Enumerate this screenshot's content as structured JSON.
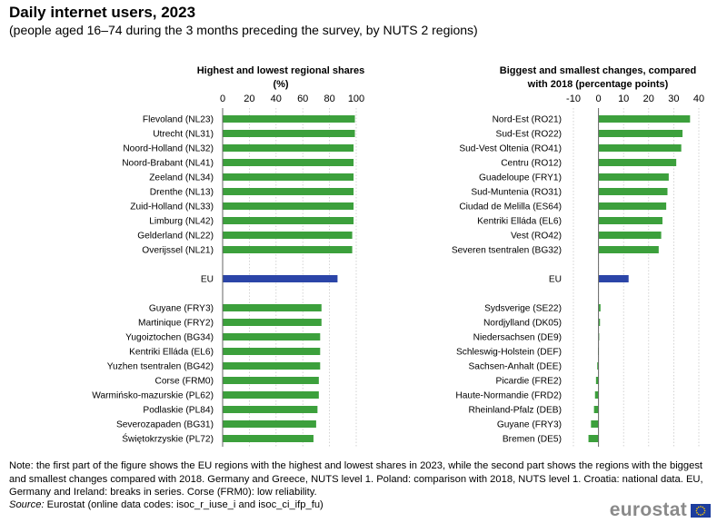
{
  "header": {
    "title": "Daily internet users, 2023",
    "subtitle": "(people aged 16–74 during the 3 months preceding the survey, by NUTS 2 regions)"
  },
  "chart_data": [
    {
      "type": "bar",
      "orientation": "horizontal",
      "title_line1": "Highest and lowest regional shares",
      "title_line2": "(%)",
      "xlim": [
        0,
        100
      ],
      "ticks": [
        0,
        20,
        40,
        60,
        80,
        100
      ],
      "groups": [
        {
          "categories": [
            "Flevoland (NL23)",
            "Utrecht (NL31)",
            "Noord-Holland (NL32)",
            "Noord-Brabant (NL41)",
            "Zeeland (NL34)",
            "Drenthe (NL13)",
            "Zuid-Holland (NL33)",
            "Limburg (NL42)",
            "Gelderland (NL22)",
            "Overijssel (NL21)"
          ],
          "values": [
            99,
            99,
            98,
            98,
            98,
            98,
            98,
            98,
            97,
            97
          ],
          "color": "#3ca03c"
        },
        {
          "categories": [
            "EU"
          ],
          "values": [
            86
          ],
          "color": "#2b45a8"
        },
        {
          "categories": [
            "Guyane (FRY3)",
            "Martinique  (FRY2)",
            "Yugoiztochen (BG34)",
            "Kentriki Elláda (EL6)",
            "Yuzhen tsentralen (BG42)",
            "Corse (FRM0)",
            "Warmińsko-mazurskie (PL62)",
            "Podlaskie (PL84)",
            "Severozapaden (BG31)",
            "Świętokrzyskie (PL72)"
          ],
          "values": [
            74,
            74,
            73,
            73,
            73,
            72,
            72,
            71,
            70,
            68
          ],
          "color": "#3ca03c"
        }
      ]
    },
    {
      "type": "bar",
      "orientation": "horizontal",
      "title_line1": "Biggest and smallest changes, compared",
      "title_line2": "with 2018 (percentage points)",
      "xlim": [
        -10,
        40
      ],
      "ticks": [
        -10,
        0,
        10,
        20,
        30,
        40
      ],
      "groups": [
        {
          "categories": [
            "Nord-Est (RO21)",
            "Sud-Est (RO22)",
            "Sud-Vest Oltenia (RO41)",
            "Centru (RO12)",
            "Guadeloupe (FRY1)",
            "Sud-Muntenia (RO31)",
            "Ciudad de Melilla (ES64)",
            "Kentriki Elláda (EL6)",
            "Vest (RO42)",
            "Severen tsentralen (BG32)"
          ],
          "values": [
            36.5,
            33.5,
            33,
            31,
            28,
            27.5,
            27,
            25.5,
            25,
            24
          ],
          "color": "#3ca03c"
        },
        {
          "categories": [
            "EU"
          ],
          "values": [
            12
          ],
          "color": "#2b45a8"
        },
        {
          "categories": [
            "Sydsverige (SE22)",
            "Nordjylland (DK05)",
            "Niedersachsen (DE9)",
            "Schleswig-Holstein (DEF)",
            "Sachsen-Anhalt (DEE)",
            "Picardie (FRE2)",
            "Haute-Normandie  (FRD2)",
            "Rheinland-Pfalz (DEB)",
            "Guyane (FRY3)",
            "Bremen (DE5)"
          ],
          "values": [
            0.8,
            0.6,
            0.2,
            -0.2,
            -0.5,
            -1,
            -1.4,
            -1.8,
            -3,
            -4
          ],
          "color": "#3ca03c"
        }
      ]
    }
  ],
  "footer": {
    "note": "Note: the first part of the figure shows the EU regions with the highest and lowest shares in 2023, while the second part shows the regions with the biggest and smallest changes compared with 2018. Germany and Greece, NUTS level 1. Poland: comparison with 2018, NUTS level 1. Croatia: national data. EU, Germany and Ireland:  breaks in series. Corse (FRM0): low reliability.",
    "source_label": "Source:",
    "source_text": " Eurostat (online data codes: isoc_r_iuse_i and isoc_ci_ifp_fu)",
    "logo": "eurostat"
  }
}
